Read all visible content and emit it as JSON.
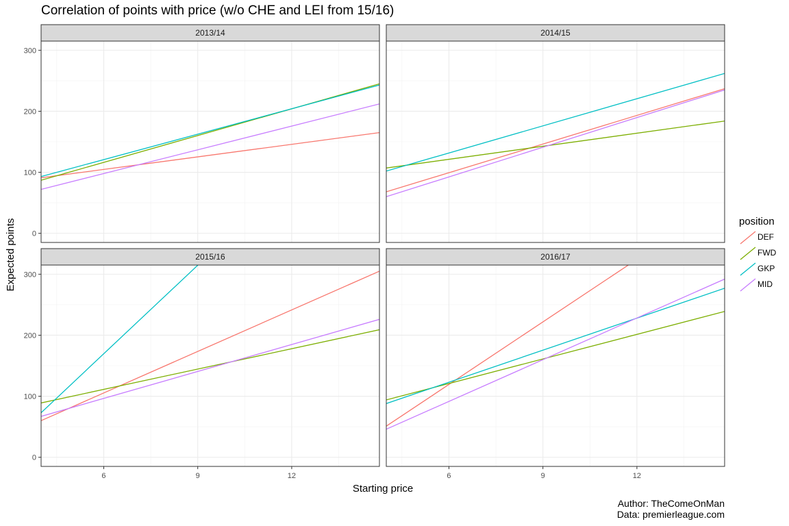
{
  "chart_data": {
    "type": "line",
    "title": "Correlation of points with price (w/o CHE and LEI from 15/16)",
    "xlabel": "Starting price",
    "ylabel": "Expected points",
    "xlim": [
      4,
      14.8
    ],
    "ylim": [
      -15,
      315
    ],
    "x_ticks": [
      6,
      9,
      12
    ],
    "y_ticks": [
      0,
      100,
      200,
      300
    ],
    "grid": true,
    "legend": {
      "title": "position",
      "placement": "right",
      "entries": [
        {
          "name": "DEF",
          "color": "#F8766D"
        },
        {
          "name": "FWD",
          "color": "#7CAE00"
        },
        {
          "name": "GKP",
          "color": "#00BFC4"
        },
        {
          "name": "MID",
          "color": "#C77CFF"
        }
      ]
    },
    "facets": [
      {
        "label": "2013/14",
        "series": [
          {
            "name": "DEF",
            "x": [
              4,
              14.8
            ],
            "y": [
              91,
              165
            ]
          },
          {
            "name": "FWD",
            "x": [
              4,
              14.8
            ],
            "y": [
              87,
              245
            ]
          },
          {
            "name": "GKP",
            "x": [
              4,
              14.8
            ],
            "y": [
              93,
              243
            ]
          },
          {
            "name": "MID",
            "x": [
              4,
              14.8
            ],
            "y": [
              72,
              212
            ]
          }
        ]
      },
      {
        "label": "2014/15",
        "series": [
          {
            "name": "DEF",
            "x": [
              4,
              14.8
            ],
            "y": [
              68,
              237
            ]
          },
          {
            "name": "FWD",
            "x": [
              4,
              14.8
            ],
            "y": [
              107,
              184
            ]
          },
          {
            "name": "GKP",
            "x": [
              4,
              14.8
            ],
            "y": [
              102,
              262
            ]
          },
          {
            "name": "MID",
            "x": [
              4,
              14.8
            ],
            "y": [
              60,
              235
            ]
          }
        ]
      },
      {
        "label": "2015/16",
        "series": [
          {
            "name": "DEF",
            "x": [
              4,
              14.8
            ],
            "y": [
              60,
              305
            ]
          },
          {
            "name": "FWD",
            "x": [
              4,
              14.8
            ],
            "y": [
              89,
              209
            ]
          },
          {
            "name": "GKP",
            "x": [
              4,
              14.8
            ],
            "y": [
              73,
              595
            ]
          },
          {
            "name": "MID",
            "x": [
              4,
              14.8
            ],
            "y": [
              67,
              226
            ]
          }
        ]
      },
      {
        "label": "2016/17",
        "series": [
          {
            "name": "DEF",
            "x": [
              4,
              14.8
            ],
            "y": [
              51,
              420
            ]
          },
          {
            "name": "FWD",
            "x": [
              4,
              14.8
            ],
            "y": [
              94,
              239
            ]
          },
          {
            "name": "GKP",
            "x": [
              4,
              14.8
            ],
            "y": [
              88,
              277
            ]
          },
          {
            "name": "MID",
            "x": [
              4,
              14.8
            ],
            "y": [
              46,
              292
            ]
          }
        ]
      }
    ],
    "caption": [
      "Author: TheComeOnMan",
      "Data: premierleague.com"
    ]
  }
}
